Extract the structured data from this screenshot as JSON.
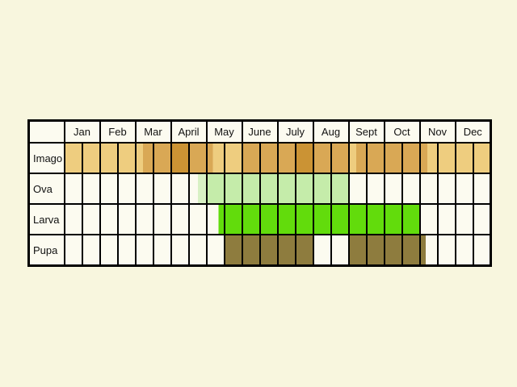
{
  "palette": {
    "page_bg": "#f8f6de",
    "cell_empty": "#fcfbf0",
    "grid_border": "#000000",
    "imago_light": "#eecd7f",
    "imago_med": "#d9a855",
    "imago_dark": "#cb9334",
    "ova": "#c5ecaa",
    "ova_pale": "#d8f1c4",
    "larva": "#62dc0c",
    "pupa": "#8e7c3e"
  },
  "chart_data": {
    "type": "heatmap",
    "x_unit": "half-month columns (2 per month)",
    "months": [
      "Jan",
      "Feb",
      "Mar",
      "April",
      "May",
      "June",
      "July",
      "Aug",
      "Sept",
      "Oct",
      "Nov",
      "Dec"
    ],
    "row_labels": [
      "Imago",
      "Ova",
      "Larva",
      "Pupa"
    ],
    "rows": [
      {
        "label": "Imago",
        "cells": [
          "imago_light",
          "imago_light",
          "imago_light",
          "imago_light",
          "imago_light:40|imago_med:60",
          "imago_med",
          "imago_dark",
          "imago_med",
          "imago_med:33|imago_light:67",
          "imago_light",
          "imago_med",
          "imago_med",
          "imago_med",
          "imago_dark",
          "imago_med",
          "imago_med",
          "imago_light:40|imago_med:60",
          "imago_med",
          "imago_med",
          "imago_med",
          "imago_med:40|imago_light:60",
          "imago_light",
          "imago_light",
          "imago_light"
        ]
      },
      {
        "label": "Ova",
        "cells": [
          "",
          "",
          "",
          "",
          "",
          "",
          "",
          "_:50|ova_pale:50",
          "ova",
          "ova",
          "ova",
          "ova",
          "ova",
          "ova",
          "ova",
          "ova",
          "",
          "",
          "",
          "",
          "",
          "",
          "",
          ""
        ]
      },
      {
        "label": "Larva",
        "cells": [
          "",
          "",
          "",
          "",
          "",
          "",
          "",
          "",
          "_:67|larva:33",
          "larva",
          "larva",
          "larva",
          "larva",
          "larva",
          "larva",
          "larva",
          "larva",
          "larva",
          "larva",
          "larva",
          "",
          "",
          "",
          ""
        ]
      },
      {
        "label": "Pupa",
        "cells": [
          "",
          "",
          "",
          "",
          "",
          "",
          "",
          "",
          "",
          "pupa",
          "pupa",
          "pupa",
          "pupa",
          "pupa",
          "",
          "",
          "pupa",
          "pupa",
          "pupa",
          "pupa",
          "pupa:30|_:70",
          "",
          "",
          ""
        ]
      }
    ]
  }
}
